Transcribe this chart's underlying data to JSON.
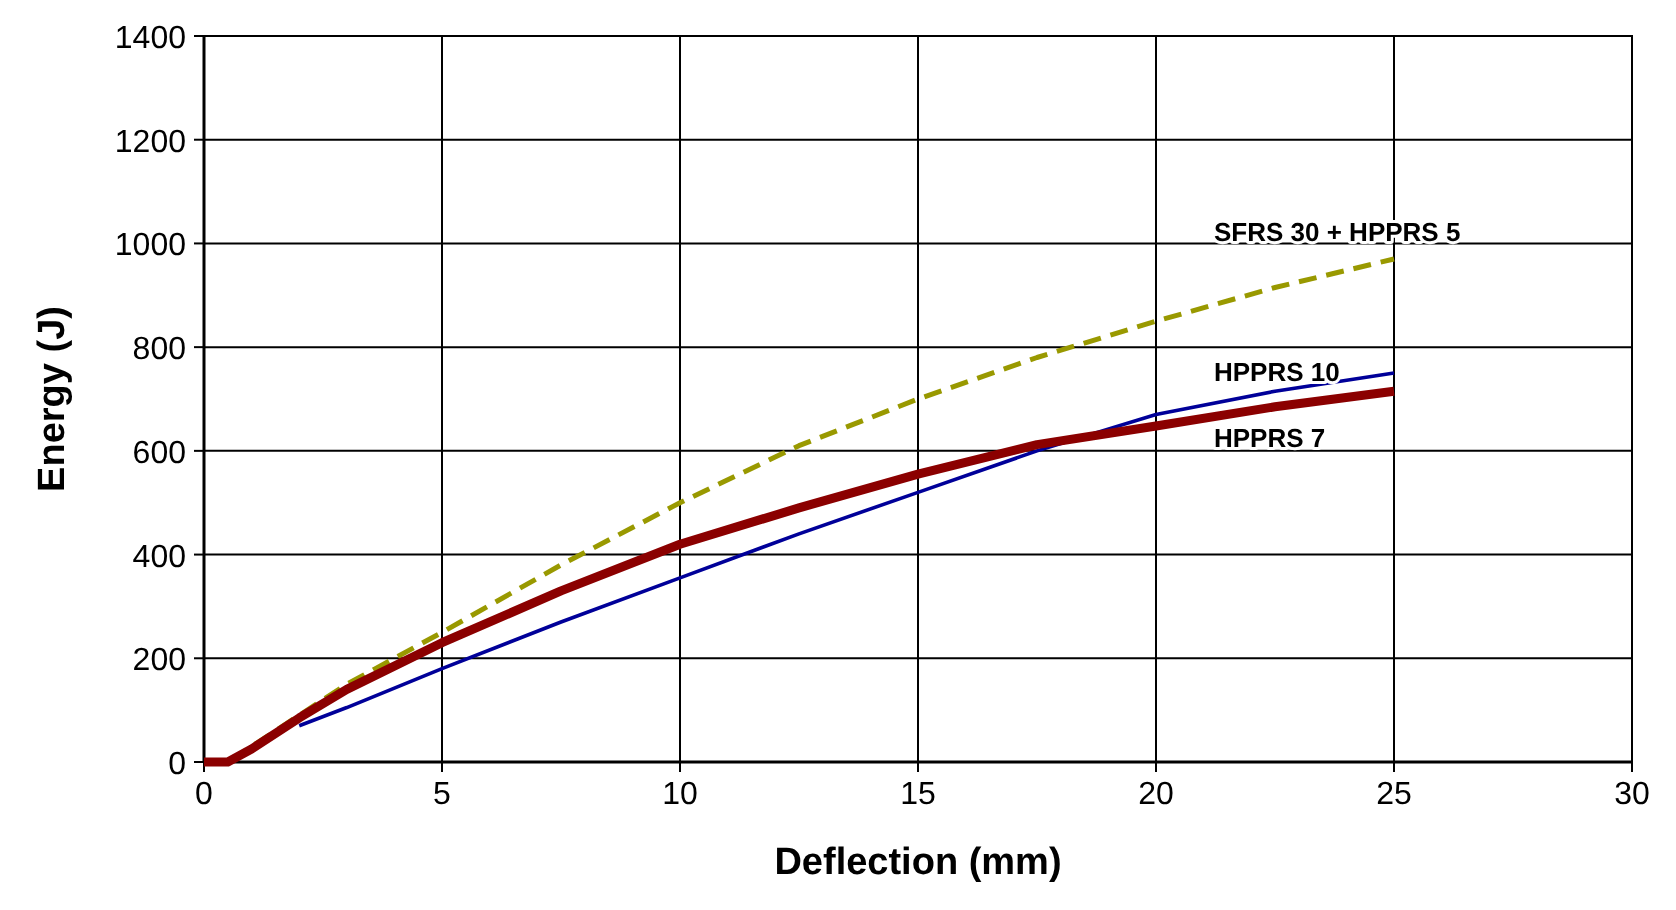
{
  "chart_data": {
    "type": "line",
    "xlabel": "Deflection (mm)",
    "ylabel": "Energy (J)",
    "xlim": [
      0,
      30
    ],
    "xticks": [
      0,
      5,
      10,
      15,
      20,
      25,
      30
    ],
    "ylim": [
      0,
      1400
    ],
    "yticks": [
      0,
      200,
      400,
      600,
      800,
      1000,
      1200,
      1400
    ],
    "grid": true,
    "legend": false,
    "marker": "none",
    "x": [
      0,
      0.5,
      1,
      2,
      3,
      5,
      7.5,
      10,
      12.5,
      15,
      17.5,
      20,
      22.5,
      25
    ],
    "series": [
      {
        "name": "SFRS 30 + HPPRS 5",
        "color": "#999900",
        "line_style": "dashed",
        "values": [
          0,
          0,
          30,
          90,
          150,
          250,
          380,
          500,
          610,
          700,
          780,
          850,
          915,
          970
        ]
      },
      {
        "name": "HPPRS 10",
        "color": "#000099",
        "line_style": "solid",
        "values": [
          null,
          null,
          null,
          70,
          105,
          180,
          270,
          355,
          440,
          520,
          600,
          670,
          715,
          750
        ]
      },
      {
        "name": "HPPRS 7",
        "color": "#8b0000",
        "line_style": "solid",
        "values": [
          0,
          0,
          25,
          85,
          140,
          230,
          330,
          420,
          490,
          555,
          612,
          648,
          685,
          715
        ]
      }
    ]
  }
}
